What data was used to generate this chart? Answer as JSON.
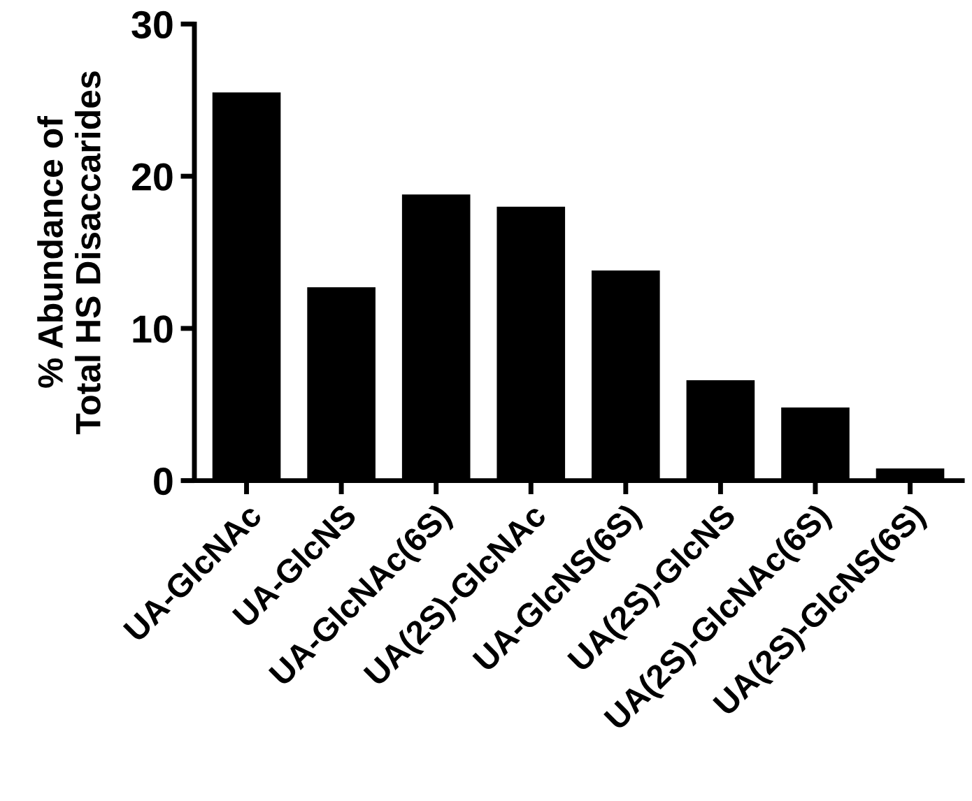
{
  "chart_data": {
    "type": "bar",
    "ylabel": "% Abundance of\nTotal HS Disaccarides",
    "categories": [
      "UA-GlcNAc",
      "UA-GlcNS",
      "UA-GlcNAc(6S)",
      "UA(2S)-GlcNAc",
      "UA-GlcNS(6S)",
      "UA(2S)-GlcNS",
      "UA(2S)-GlcNAc(6S)",
      "UA(2S)-GlcNS(6S)"
    ],
    "values": [
      25.5,
      12.7,
      18.8,
      18.0,
      13.8,
      6.6,
      4.8,
      0.8
    ],
    "color": "#000000",
    "ylim": [
      0,
      30
    ],
    "yticks": [
      0,
      10,
      20,
      30
    ],
    "grid": false,
    "legend": false
  }
}
